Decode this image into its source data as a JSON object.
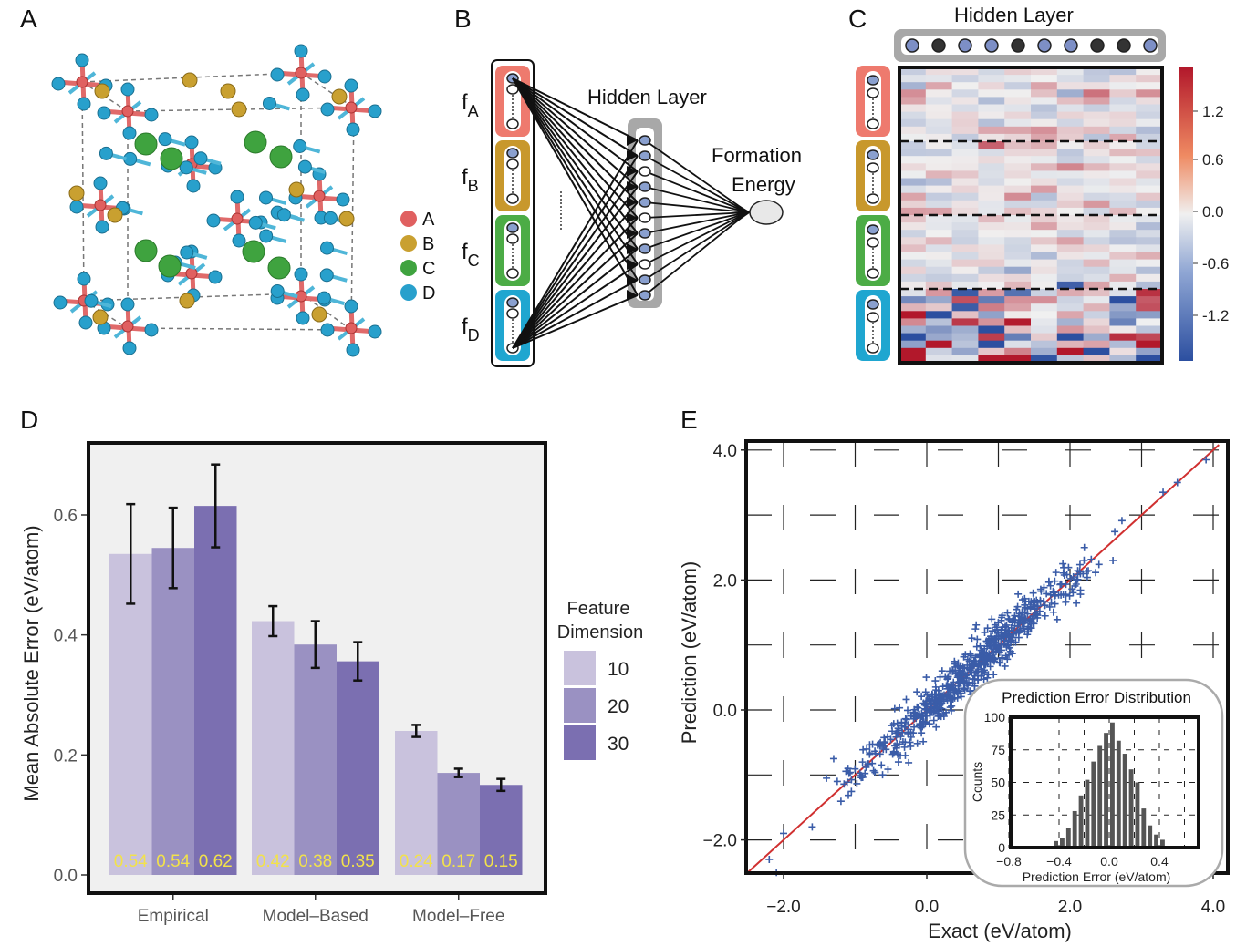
{
  "panels": {
    "a": "A",
    "b": "B",
    "c": "C",
    "d": "D",
    "e": "E"
  },
  "panel_a": {
    "legend": [
      {
        "label": "A",
        "color": "#e06060"
      },
      {
        "label": "B",
        "color": "#c9a030"
      },
      {
        "label": "C",
        "color": "#3fa33f"
      },
      {
        "label": "D",
        "color": "#28a0cc"
      }
    ]
  },
  "panel_b": {
    "inputs": [
      {
        "label": "f",
        "sub": "A",
        "color": "#ee7a6e"
      },
      {
        "label": "f",
        "sub": "B",
        "color": "#c8982c"
      },
      {
        "label": "f",
        "sub": "C",
        "color": "#4cac46"
      },
      {
        "label": "f",
        "sub": "D",
        "color": "#1fa6d0"
      }
    ],
    "hidden_label": "Hidden Layer",
    "output_label_line1": "Formation",
    "output_label_line2": "Energy"
  },
  "panel_c": {
    "hidden_label": "Hidden Layer",
    "colorbar_ticks": [
      "1.2",
      "0.6",
      "0.0",
      "-0.6",
      "-1.2"
    ],
    "colors": {
      "pos": "#b2182b",
      "neg": "#2c4fa0",
      "mid": "#f0f0f0"
    }
  },
  "chart_data": [
    {
      "type": "bar",
      "panel": "D",
      "categories": [
        "Empirical",
        "Model–Based",
        "Model–Free"
      ],
      "series": [
        {
          "name": "10",
          "values": [
            0.54,
            0.42,
            0.24
          ],
          "err": [
            0.083,
            0.025,
            0.01
          ],
          "color": "#c9c2dd",
          "labels": [
            "0.54",
            "0.42",
            "0.24"
          ]
        },
        {
          "name": "20",
          "values": [
            0.54,
            0.38,
            0.17
          ],
          "err": [
            0.067,
            0.039,
            0.007
          ],
          "color": "#9a91c2",
          "labels": [
            "0.54",
            "0.38",
            "0.17"
          ]
        },
        {
          "name": "30",
          "values": [
            0.62,
            0.35,
            0.15
          ],
          "err": [
            0.069,
            0.032,
            0.01
          ],
          "color": "#7b6fb1",
          "labels": [
            "0.62",
            "0.35",
            "0.15"
          ]
        }
      ],
      "bar_heights": [
        [
          0.535,
          0.423,
          0.24
        ],
        [
          0.545,
          0.384,
          0.17
        ],
        [
          0.615,
          0.356,
          0.15
        ]
      ],
      "ylabel": "Mean Absolute Error (eV/atom)",
      "yticks": [
        "0.0",
        "0.2",
        "0.4",
        "0.6"
      ],
      "ylim": [
        0,
        0.72
      ],
      "legend_title_line1": "Feature",
      "legend_title_line2": "Dimension",
      "legend_placement": "right",
      "value_label_color": "#f2e24a",
      "background": "#f0f0f0"
    },
    {
      "type": "scatter",
      "panel": "E",
      "xlabel": "Exact (eV/atom)",
      "ylabel": "Prediction (eV/atom)",
      "xticks": [
        "−2.0",
        "0.0",
        "2.0",
        "4.0"
      ],
      "yticks": [
        "4.0",
        "2.0",
        "0.0",
        "−2.0"
      ],
      "xlim": [
        -2.5,
        4.3
      ],
      "ylim": [
        -2.5,
        4.2
      ],
      "fit_line": {
        "slope": 1,
        "intercept": 0,
        "color": "#d03030"
      },
      "marker_color": "#3a5ca8",
      "outliers": [
        [
          -2.1,
          -2.5
        ],
        [
          -2.2,
          -2.3
        ],
        [
          -2.0,
          -1.9
        ],
        [
          -1.6,
          -1.8
        ],
        [
          -1.4,
          -1.05
        ],
        [
          -1.3,
          -0.75
        ],
        [
          -1.1,
          -0.9
        ],
        [
          -1.25,
          -1.1
        ],
        [
          3.9,
          3.85
        ],
        [
          3.5,
          3.5
        ],
        [
          3.3,
          3.35
        ],
        [
          2.2,
          2.5
        ],
        [
          2.6,
          2.3
        ],
        [
          1.9,
          2.25
        ],
        [
          0.2,
          -0.1
        ],
        [
          -0.3,
          -0.7
        ]
      ],
      "inset": {
        "title": "Prediction Error Distribution",
        "xlabel": "Prediction Error (eV/atom)",
        "ylabel": "Counts",
        "xticks": [
          "−0.8",
          "−0.4",
          "0.0",
          "0.4"
        ],
        "yticks": [
          "100",
          "75",
          "50",
          "25",
          "0"
        ],
        "bins": [
          -0.45,
          -0.4,
          -0.35,
          -0.3,
          -0.25,
          -0.2,
          -0.15,
          -0.1,
          -0.05,
          0.0,
          0.05,
          0.1,
          0.15,
          0.2,
          0.25,
          0.3,
          0.35,
          0.4
        ],
        "counts": [
          5,
          7,
          15,
          28,
          40,
          52,
          66,
          78,
          88,
          96,
          82,
          72,
          60,
          50,
          30,
          17,
          10,
          6
        ],
        "bar_color": "#555555"
      }
    }
  ]
}
